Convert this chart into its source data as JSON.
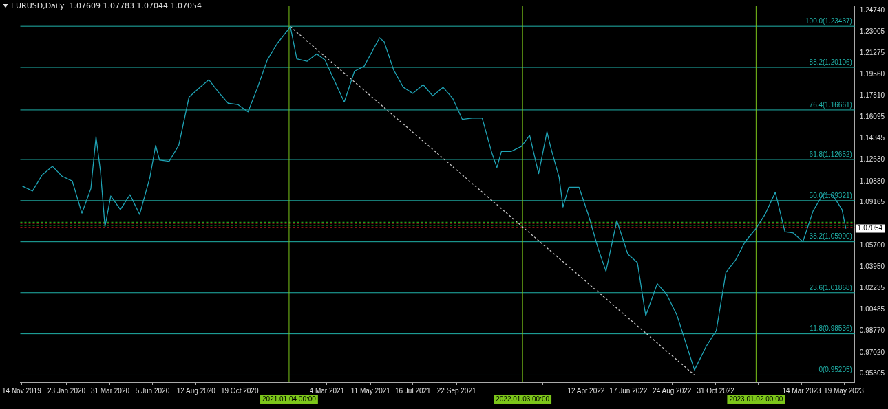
{
  "chart_data": {
    "type": "line",
    "title": "EURUSD,Daily  1.07609 1.07783 1.07044 1.07054",
    "legend": false,
    "grid": false,
    "marker": "none",
    "xlim": [
      "2019-11-12",
      "2023-06-05"
    ],
    "xticks": [
      {
        "value": "2019-11-14",
        "label": "14 Nov 2019"
      },
      {
        "value": "2020-01-23",
        "label": "23 Jan 2020"
      },
      {
        "value": "2020-03-31",
        "label": "31 Mar 2020"
      },
      {
        "value": "2020-06-05",
        "label": "5 Jun 2020"
      },
      {
        "value": "2020-08-12",
        "label": "12 Aug 2020"
      },
      {
        "value": "2020-10-19",
        "label": "19 Oct 2020"
      },
      {
        "value": "2020-12-24",
        "label": null
      },
      {
        "value": "2021-03-04",
        "label": "4 Mar 2021"
      },
      {
        "value": "2021-05-11",
        "label": "11 May 2021"
      },
      {
        "value": "2021-07-16",
        "label": "16 Jul 2021"
      },
      {
        "value": "2021-09-22",
        "label": "22 Sep 2021"
      },
      {
        "value": "2021-11-26",
        "label": null
      },
      {
        "value": "2022-02-03",
        "label": null
      },
      {
        "value": "2022-04-12",
        "label": "12 Apr 2022"
      },
      {
        "value": "2022-06-17",
        "label": "17 Jun 2022"
      },
      {
        "value": "2022-08-24",
        "label": "24 Aug 2022"
      },
      {
        "value": "2022-10-31",
        "label": "31 Oct 2022"
      },
      {
        "value": "2023-01-05",
        "label": null
      },
      {
        "value": "2023-03-14",
        "label": "14 Mar 2023"
      },
      {
        "value": "2023-05-19",
        "label": "19 May 2023"
      }
    ],
    "ylim": [
      0.9462,
      1.2506
    ],
    "yticks": [
      {
        "value": 1.2474,
        "label": "1.24740"
      },
      {
        "value": 1.23005,
        "label": "1.23005"
      },
      {
        "value": 1.21275,
        "label": "1.21275"
      },
      {
        "value": 1.1956,
        "label": "1.19560"
      },
      {
        "value": 1.1781,
        "label": "1.17810"
      },
      {
        "value": 1.16095,
        "label": "1.16095"
      },
      {
        "value": 1.14345,
        "label": "1.14345"
      },
      {
        "value": 1.1263,
        "label": "1.12630"
      },
      {
        "value": 1.1088,
        "label": "1.10880"
      },
      {
        "value": 1.09165,
        "label": "1.09165"
      },
      {
        "value": 1.07415,
        "label": null
      },
      {
        "value": 1.057,
        "label": "1.05700"
      },
      {
        "value": 1.0395,
        "label": "1.03950"
      },
      {
        "value": 1.02235,
        "label": "1.02235"
      },
      {
        "value": 1.00485,
        "label": "1.00485"
      },
      {
        "value": 0.9877,
        "label": "0.98770"
      },
      {
        "value": 0.9702,
        "label": "0.97020"
      },
      {
        "value": 0.95305,
        "label": "0.95305"
      }
    ],
    "series": [
      {
        "color": "#1fa3b5",
        "x": [
          "2019-11-15",
          "2019-12-01",
          "2019-12-16",
          "2020-01-01",
          "2020-01-16",
          "2020-02-01",
          "2020-02-16",
          "2020-03-01",
          "2020-03-09",
          "2020-03-16",
          "2020-03-23",
          "2020-04-01",
          "2020-04-16",
          "2020-05-01",
          "2020-05-16",
          "2020-06-01",
          "2020-06-10",
          "2020-06-16",
          "2020-07-01",
          "2020-07-16",
          "2020-08-01",
          "2020-08-16",
          "2020-09-01",
          "2020-09-16",
          "2020-10-01",
          "2020-10-16",
          "2020-11-01",
          "2020-11-16",
          "2020-12-01",
          "2020-12-16",
          "2021-01-06",
          "2021-01-16",
          "2021-02-01",
          "2021-02-16",
          "2021-03-01",
          "2021-03-16",
          "2021-03-31",
          "2021-04-16",
          "2021-05-01",
          "2021-05-25",
          "2021-06-01",
          "2021-06-16",
          "2021-07-01",
          "2021-07-16",
          "2021-08-01",
          "2021-08-16",
          "2021-09-01",
          "2021-09-16",
          "2021-10-01",
          "2021-10-16",
          "2021-11-01",
          "2021-11-16",
          "2021-11-24",
          "2021-12-01",
          "2021-12-16",
          "2022-01-01",
          "2022-01-14",
          "2022-01-28",
          "2022-02-10",
          "2022-02-16",
          "2022-03-01",
          "2022-03-07",
          "2022-03-16",
          "2022-04-01",
          "2022-04-16",
          "2022-05-01",
          "2022-05-13",
          "2022-05-30",
          "2022-06-16",
          "2022-07-01",
          "2022-07-14",
          "2022-08-01",
          "2022-08-16",
          "2022-09-01",
          "2022-09-28",
          "2022-10-16",
          "2022-11-01",
          "2022-11-16",
          "2022-12-01",
          "2022-12-16",
          "2023-01-01",
          "2023-01-16",
          "2023-02-01",
          "2023-02-16",
          "2023-03-01",
          "2023-03-16",
          "2023-04-01",
          "2023-04-16",
          "2023-05-01",
          "2023-05-16",
          "2023-05-22"
        ],
        "values": [
          1.105,
          1.101,
          1.114,
          1.121,
          1.113,
          1.109,
          1.083,
          1.103,
          1.145,
          1.117,
          1.072,
          1.097,
          1.086,
          1.098,
          1.082,
          1.112,
          1.138,
          1.126,
          1.125,
          1.138,
          1.177,
          1.184,
          1.191,
          1.181,
          1.172,
          1.171,
          1.165,
          1.185,
          1.207,
          1.22,
          1.234,
          1.208,
          1.206,
          1.212,
          1.207,
          1.19,
          1.173,
          1.198,
          1.202,
          1.225,
          1.222,
          1.199,
          1.185,
          1.18,
          1.187,
          1.178,
          1.185,
          1.176,
          1.159,
          1.16,
          1.16,
          1.132,
          1.12,
          1.133,
          1.133,
          1.137,
          1.146,
          1.115,
          1.149,
          1.136,
          1.112,
          1.088,
          1.104,
          1.104,
          1.081,
          1.054,
          1.036,
          1.077,
          1.05,
          1.043,
          1.0,
          1.026,
          1.017,
          1.0,
          0.956,
          0.975,
          0.988,
          1.035,
          1.045,
          1.06,
          1.07,
          1.082,
          1.1,
          1.068,
          1.067,
          1.06,
          1.085,
          1.098,
          1.098,
          1.086,
          1.0705
        ]
      },
      {
        "type": "line",
        "color": "#c8c8c8",
        "line_style": "dashed",
        "x": [
          "2021-01-06",
          "2022-09-28"
        ],
        "values": [
          1.234,
          0.952
        ]
      }
    ],
    "ref_lines": [
      {
        "axis": "y",
        "value": 1.23437,
        "label": "100.0(1.23437)",
        "color": "#20b2aa"
      },
      {
        "axis": "y",
        "value": 1.20106,
        "label": "88.2(1.20106)",
        "color": "#20b2aa"
      },
      {
        "axis": "y",
        "value": 1.16661,
        "label": "76.4(1.16661)",
        "color": "#20b2aa"
      },
      {
        "axis": "y",
        "value": 1.12652,
        "label": "61.8(1.12652)",
        "color": "#20b2aa"
      },
      {
        "axis": "y",
        "value": 1.09321,
        "label": "50.0(1.09321)",
        "color": "#20b2aa"
      },
      {
        "axis": "y",
        "value": 1.0599,
        "label": "38.2(1.05990)",
        "color": "#20b2aa"
      },
      {
        "axis": "y",
        "value": 1.01868,
        "label": "23.6(1.01868)",
        "color": "#20b2aa"
      },
      {
        "axis": "y",
        "value": 0.98536,
        "label": "11.8(0.98536)",
        "color": "#20b2aa"
      },
      {
        "axis": "y",
        "value": 0.95205,
        "label": "0(0.95205)",
        "color": "#20b2aa"
      },
      {
        "axis": "y",
        "value": 1.0757,
        "color": "#22cc22",
        "line_style": "dashed"
      },
      {
        "axis": "y",
        "value": 1.0747,
        "color": "#cc2222",
        "line_style": "dashed"
      },
      {
        "axis": "y",
        "value": 1.0731,
        "color": "#22cc22",
        "line_style": "dashed"
      },
      {
        "axis": "y",
        "value": 1.0715,
        "color": "#cc2222",
        "line_style": "dashed"
      },
      {
        "axis": "x",
        "value": "2021-01-04",
        "label": "2021.01.04 00:00",
        "color": "#7cc61a"
      },
      {
        "axis": "x",
        "value": "2022-01-03",
        "label": "2022.01.03 00:00",
        "color": "#7cc61a"
      },
      {
        "axis": "x",
        "value": "2023-01-02",
        "label": "2023.01.02 00:00",
        "color": "#7cc61a"
      }
    ],
    "annotations": [
      {
        "text": "1.07054",
        "x": "2023-05-22",
        "y": 1.07054
      }
    ]
  }
}
